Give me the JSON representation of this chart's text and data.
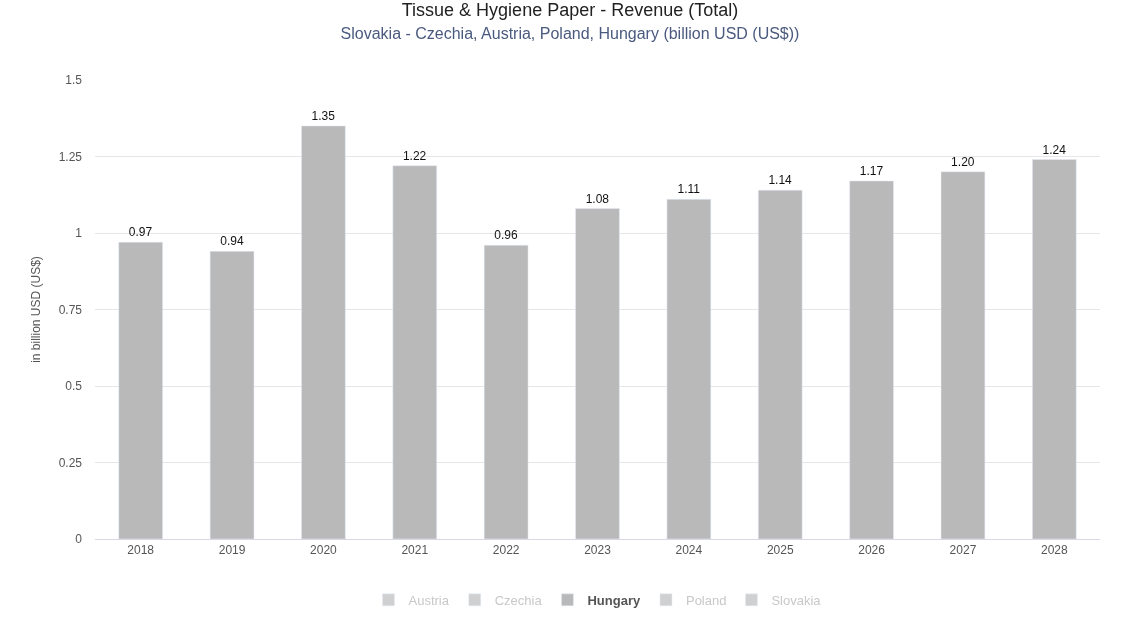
{
  "chart_data": {
    "type": "bar",
    "title": "Tissue & Hygiene Paper - Revenue (Total)",
    "subtitle": "Slovakia - Czechia, Austria, Poland, Hungary (billion USD (US$))",
    "ylabel": "in billion USD (US$)",
    "categories": [
      "2018",
      "2019",
      "2020",
      "2021",
      "2022",
      "2023",
      "2024",
      "2025",
      "2026",
      "2027",
      "2028"
    ],
    "series": [
      {
        "name": "Austria",
        "color": "#d0d0d0",
        "values": [
          null,
          null,
          null,
          null,
          null,
          null,
          null,
          null,
          null,
          null,
          null
        ]
      },
      {
        "name": "Czechia",
        "color": "#d0d0d0",
        "values": [
          null,
          null,
          null,
          null,
          null,
          null,
          null,
          null,
          null,
          null,
          null
        ]
      },
      {
        "name": "Hungary",
        "color": "#b9b9b9",
        "values": [
          0.97,
          0.94,
          1.35,
          1.22,
          0.96,
          1.08,
          1.11,
          1.14,
          1.17,
          1.2,
          1.24
        ],
        "value_labels": [
          "0.97",
          "0.94",
          "1.35",
          "1.22",
          "0.96",
          "1.08",
          "1.11",
          "1.14",
          "1.17",
          "1.20",
          "1.24"
        ]
      },
      {
        "name": "Poland",
        "color": "#d0d0d0",
        "values": [
          null,
          null,
          null,
          null,
          null,
          null,
          null,
          null,
          null,
          null,
          null
        ]
      },
      {
        "name": "Slovakia",
        "color": "#d0d0d0",
        "values": [
          null,
          null,
          null,
          null,
          null,
          null,
          null,
          null,
          null,
          null,
          null
        ]
      }
    ],
    "ylim": [
      0,
      1.5
    ],
    "yticks": [
      0,
      0.25,
      0.5,
      0.75,
      1,
      1.25,
      1.5
    ],
    "grid": "y",
    "legend": "bottom"
  }
}
